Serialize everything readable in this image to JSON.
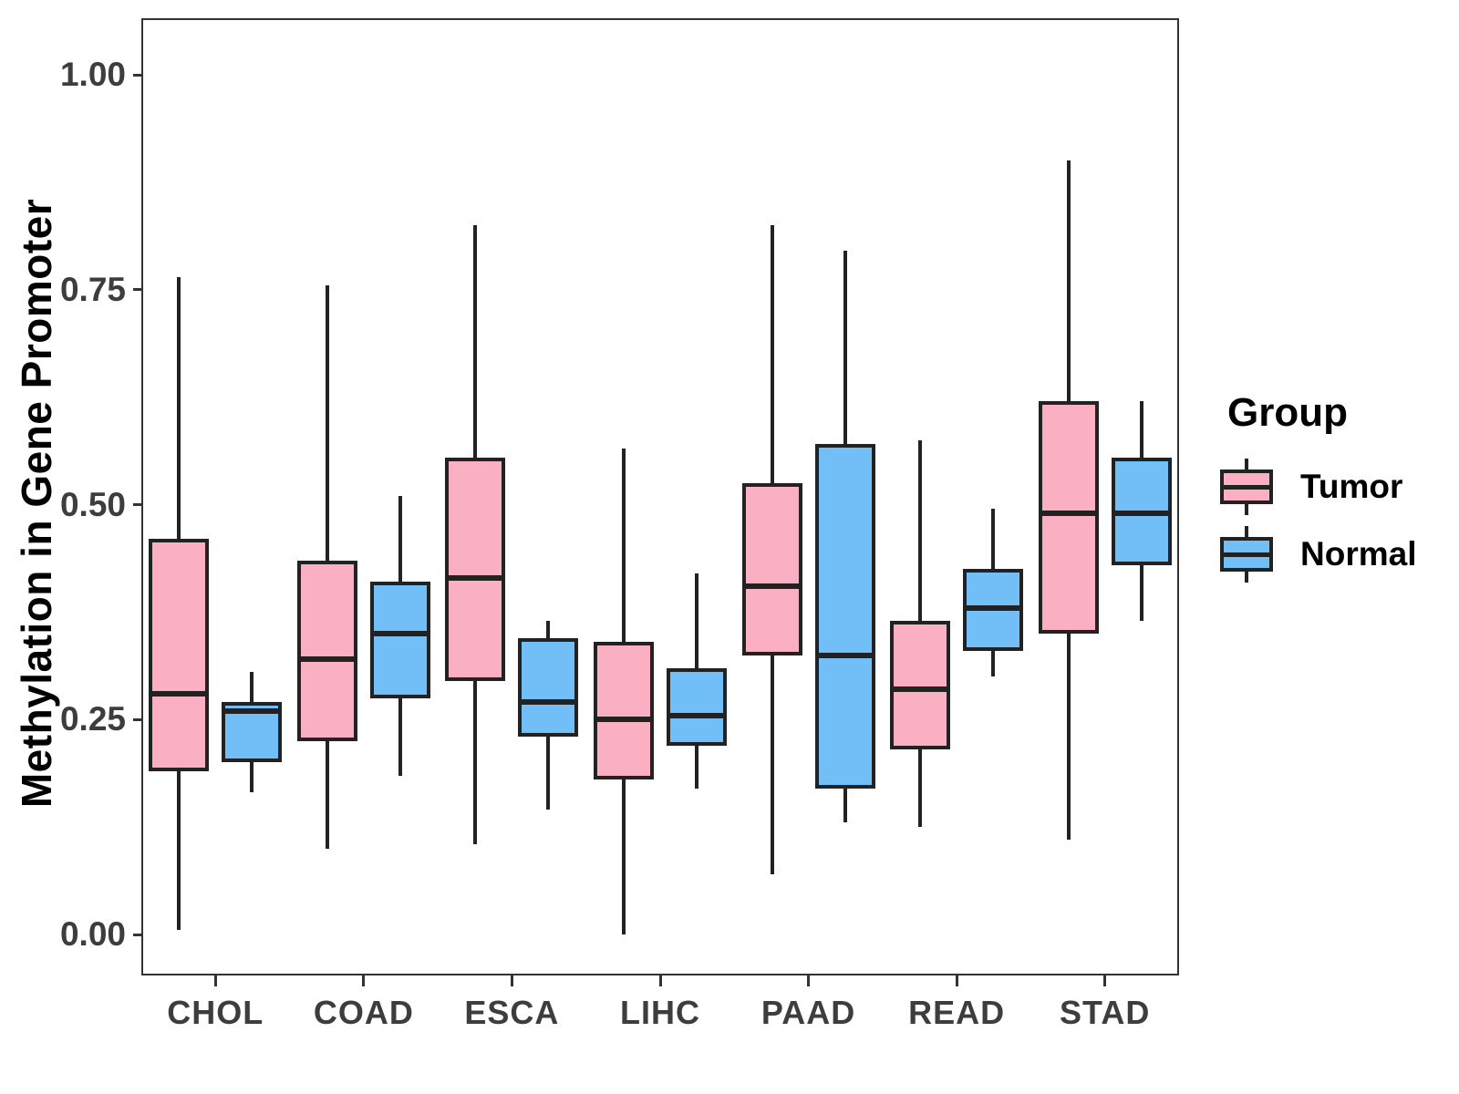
{
  "chart": {
    "y_axis": {
      "title": "Methylation in Gene Promoter",
      "ticks": [
        {
          "label": "1.00",
          "value": 1.0
        },
        {
          "label": "0.75",
          "value": 0.75
        },
        {
          "label": "0.50",
          "value": 0.5
        },
        {
          "label": "0.25",
          "value": 0.25
        },
        {
          "label": "0.00",
          "value": 0.0
        }
      ]
    },
    "legend": {
      "title": "Group",
      "entries": [
        {
          "label": "Tumor",
          "color": "#FAAFC3"
        },
        {
          "label": "Normal",
          "color": "#72BFF7"
        }
      ]
    }
  },
  "colors": {
    "tumor_fill": "#FAAFC3",
    "normal_fill": "#72BFF7",
    "box_stroke": "#222222",
    "panel_border": "#333333",
    "axis_text": "#3D3D3D",
    "title_text": "#000000",
    "background": "#FFFFFF"
  },
  "chart_data": {
    "type": "boxplot",
    "title": "",
    "xlabel": "",
    "ylabel": "Methylation in Gene Promoter",
    "ylim": [
      -0.05,
      1.07
    ],
    "grid": false,
    "legend_position": "right",
    "categories": [
      "CHOL",
      "COAD",
      "ESCA",
      "LIHC",
      "PAAD",
      "READ",
      "STAD"
    ],
    "series": [
      {
        "name": "Tumor",
        "color": "#FAAFC3",
        "boxes": [
          {
            "category": "CHOL",
            "whisker_low": 0.005,
            "q1": 0.19,
            "median": 0.28,
            "q3": 0.46,
            "whisker_high": 0.765
          },
          {
            "category": "COAD",
            "whisker_low": 0.1,
            "q1": 0.225,
            "median": 0.32,
            "q3": 0.435,
            "whisker_high": 0.755
          },
          {
            "category": "ESCA",
            "whisker_low": 0.105,
            "q1": 0.295,
            "median": 0.415,
            "q3": 0.555,
            "whisker_high": 0.825
          },
          {
            "category": "LIHC",
            "whisker_low": 0.0,
            "q1": 0.18,
            "median": 0.25,
            "q3": 0.34,
            "whisker_high": 0.565
          },
          {
            "category": "PAAD",
            "whisker_low": 0.07,
            "q1": 0.325,
            "median": 0.405,
            "q3": 0.525,
            "whisker_high": 0.825
          },
          {
            "category": "READ",
            "whisker_low": 0.125,
            "q1": 0.215,
            "median": 0.285,
            "q3": 0.365,
            "whisker_high": 0.575
          },
          {
            "category": "STAD",
            "whisker_low": 0.11,
            "q1": 0.35,
            "median": 0.49,
            "q3": 0.62,
            "whisker_high": 0.9
          }
        ]
      },
      {
        "name": "Normal",
        "color": "#72BFF7",
        "boxes": [
          {
            "category": "CHOL",
            "whisker_low": 0.165,
            "q1": 0.2,
            "median": 0.26,
            "q3": 0.27,
            "whisker_high": 0.305
          },
          {
            "category": "COAD",
            "whisker_low": 0.185,
            "q1": 0.275,
            "median": 0.35,
            "q3": 0.41,
            "whisker_high": 0.51
          },
          {
            "category": "ESCA",
            "whisker_low": 0.145,
            "q1": 0.23,
            "median": 0.27,
            "q3": 0.345,
            "whisker_high": 0.365
          },
          {
            "category": "LIHC",
            "whisker_low": 0.17,
            "q1": 0.22,
            "median": 0.255,
            "q3": 0.31,
            "whisker_high": 0.42
          },
          {
            "category": "PAAD",
            "whisker_low": 0.13,
            "q1": 0.17,
            "median": 0.325,
            "q3": 0.57,
            "whisker_high": 0.795
          },
          {
            "category": "READ",
            "whisker_low": 0.3,
            "q1": 0.33,
            "median": 0.38,
            "q3": 0.425,
            "whisker_high": 0.495
          },
          {
            "category": "STAD",
            "whisker_low": 0.365,
            "q1": 0.43,
            "median": 0.49,
            "q3": 0.555,
            "whisker_high": 0.62
          }
        ]
      }
    ]
  },
  "layout_note": ""
}
